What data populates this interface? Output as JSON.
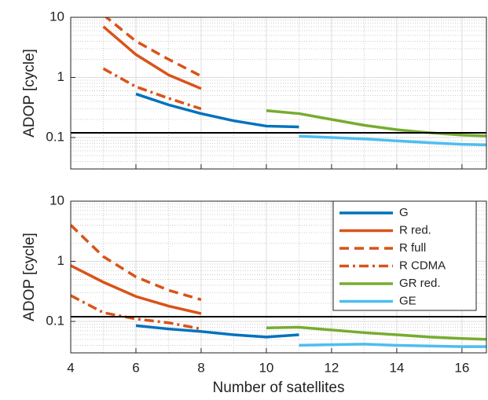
{
  "chart_data": [
    {
      "type": "line",
      "ylabel": "ADOP [cycle]",
      "log_y": true,
      "grid": true,
      "minor_grid": true,
      "show_xtick_labels": false,
      "xlim": [
        4,
        16.75
      ],
      "xticks": [
        4,
        6,
        8,
        10,
        12,
        14,
        16
      ],
      "ylim": [
        0.03,
        10
      ],
      "yticks": [
        0.1,
        1,
        10
      ],
      "hline": 0.12,
      "series": [
        {
          "name": "G",
          "color": "#0072BD",
          "dash": "solid",
          "x": [
            6,
            7,
            8,
            9,
            10,
            11
          ],
          "values": [
            0.53,
            0.35,
            0.25,
            0.19,
            0.155,
            0.15
          ]
        },
        {
          "name": "R red.",
          "color": "#D95319",
          "dash": "solid",
          "x": [
            5,
            6,
            7,
            8
          ],
          "values": [
            7,
            2.4,
            1.1,
            0.65
          ]
        },
        {
          "name": "R full",
          "color": "#D95319",
          "dash": "dash",
          "x": [
            5,
            6,
            7,
            8
          ],
          "values": [
            11,
            4,
            2,
            1.05
          ]
        },
        {
          "name": "R CDMA",
          "color": "#D95319",
          "dash": "dashdot",
          "x": [
            5,
            6,
            7,
            8
          ],
          "values": [
            1.4,
            0.7,
            0.45,
            0.3
          ]
        },
        {
          "name": "GR red.",
          "color": "#77AC30",
          "dash": "solid",
          "x": [
            10,
            11,
            12,
            13,
            14,
            15,
            16,
            17
          ],
          "values": [
            0.28,
            0.25,
            0.2,
            0.16,
            0.135,
            0.12,
            0.11,
            0.105
          ]
        },
        {
          "name": "GE",
          "color": "#4DBEEE",
          "dash": "solid",
          "x": [
            11,
            12,
            13,
            14,
            15,
            16,
            17
          ],
          "values": [
            0.105,
            0.1,
            0.095,
            0.088,
            0.082,
            0.077,
            0.075
          ]
        }
      ]
    },
    {
      "type": "line",
      "ylabel": "ADOP [cycle]",
      "xlabel": "Number of satellites",
      "log_y": true,
      "grid": true,
      "minor_grid": true,
      "show_xtick_labels": true,
      "legend": "upper right",
      "xlim": [
        4,
        16.75
      ],
      "xticks": [
        4,
        6,
        8,
        10,
        12,
        14,
        16
      ],
      "ylim": [
        0.03,
        10
      ],
      "yticks": [
        0.1,
        1,
        10
      ],
      "hline": 0.12,
      "series": [
        {
          "name": "G",
          "color": "#0072BD",
          "dash": "solid",
          "x": [
            6,
            7,
            8,
            9,
            10,
            11
          ],
          "values": [
            0.085,
            0.075,
            0.068,
            0.06,
            0.055,
            0.06
          ]
        },
        {
          "name": "R red.",
          "color": "#D95319",
          "dash": "solid",
          "x": [
            4,
            5,
            6,
            7,
            8
          ],
          "values": [
            0.85,
            0.45,
            0.26,
            0.18,
            0.135
          ]
        },
        {
          "name": "R full",
          "color": "#D95319",
          "dash": "dash",
          "x": [
            4,
            5,
            6,
            7,
            8
          ],
          "values": [
            4,
            1.2,
            0.55,
            0.33,
            0.23
          ]
        },
        {
          "name": "R CDMA",
          "color": "#D95319",
          "dash": "dashdot",
          "x": [
            4,
            5,
            6,
            7,
            8
          ],
          "values": [
            0.27,
            0.14,
            0.11,
            0.095,
            0.075
          ]
        },
        {
          "name": "GR red.",
          "color": "#77AC30",
          "dash": "solid",
          "x": [
            10,
            11,
            12,
            13,
            14,
            15,
            16,
            17
          ],
          "values": [
            0.078,
            0.08,
            0.072,
            0.065,
            0.06,
            0.055,
            0.052,
            0.05
          ]
        },
        {
          "name": "GE",
          "color": "#4DBEEE",
          "dash": "solid",
          "x": [
            11,
            12,
            13,
            14,
            15,
            16,
            17
          ],
          "values": [
            0.04,
            0.041,
            0.042,
            0.04,
            0.039,
            0.038,
            0.038
          ]
        }
      ]
    }
  ]
}
